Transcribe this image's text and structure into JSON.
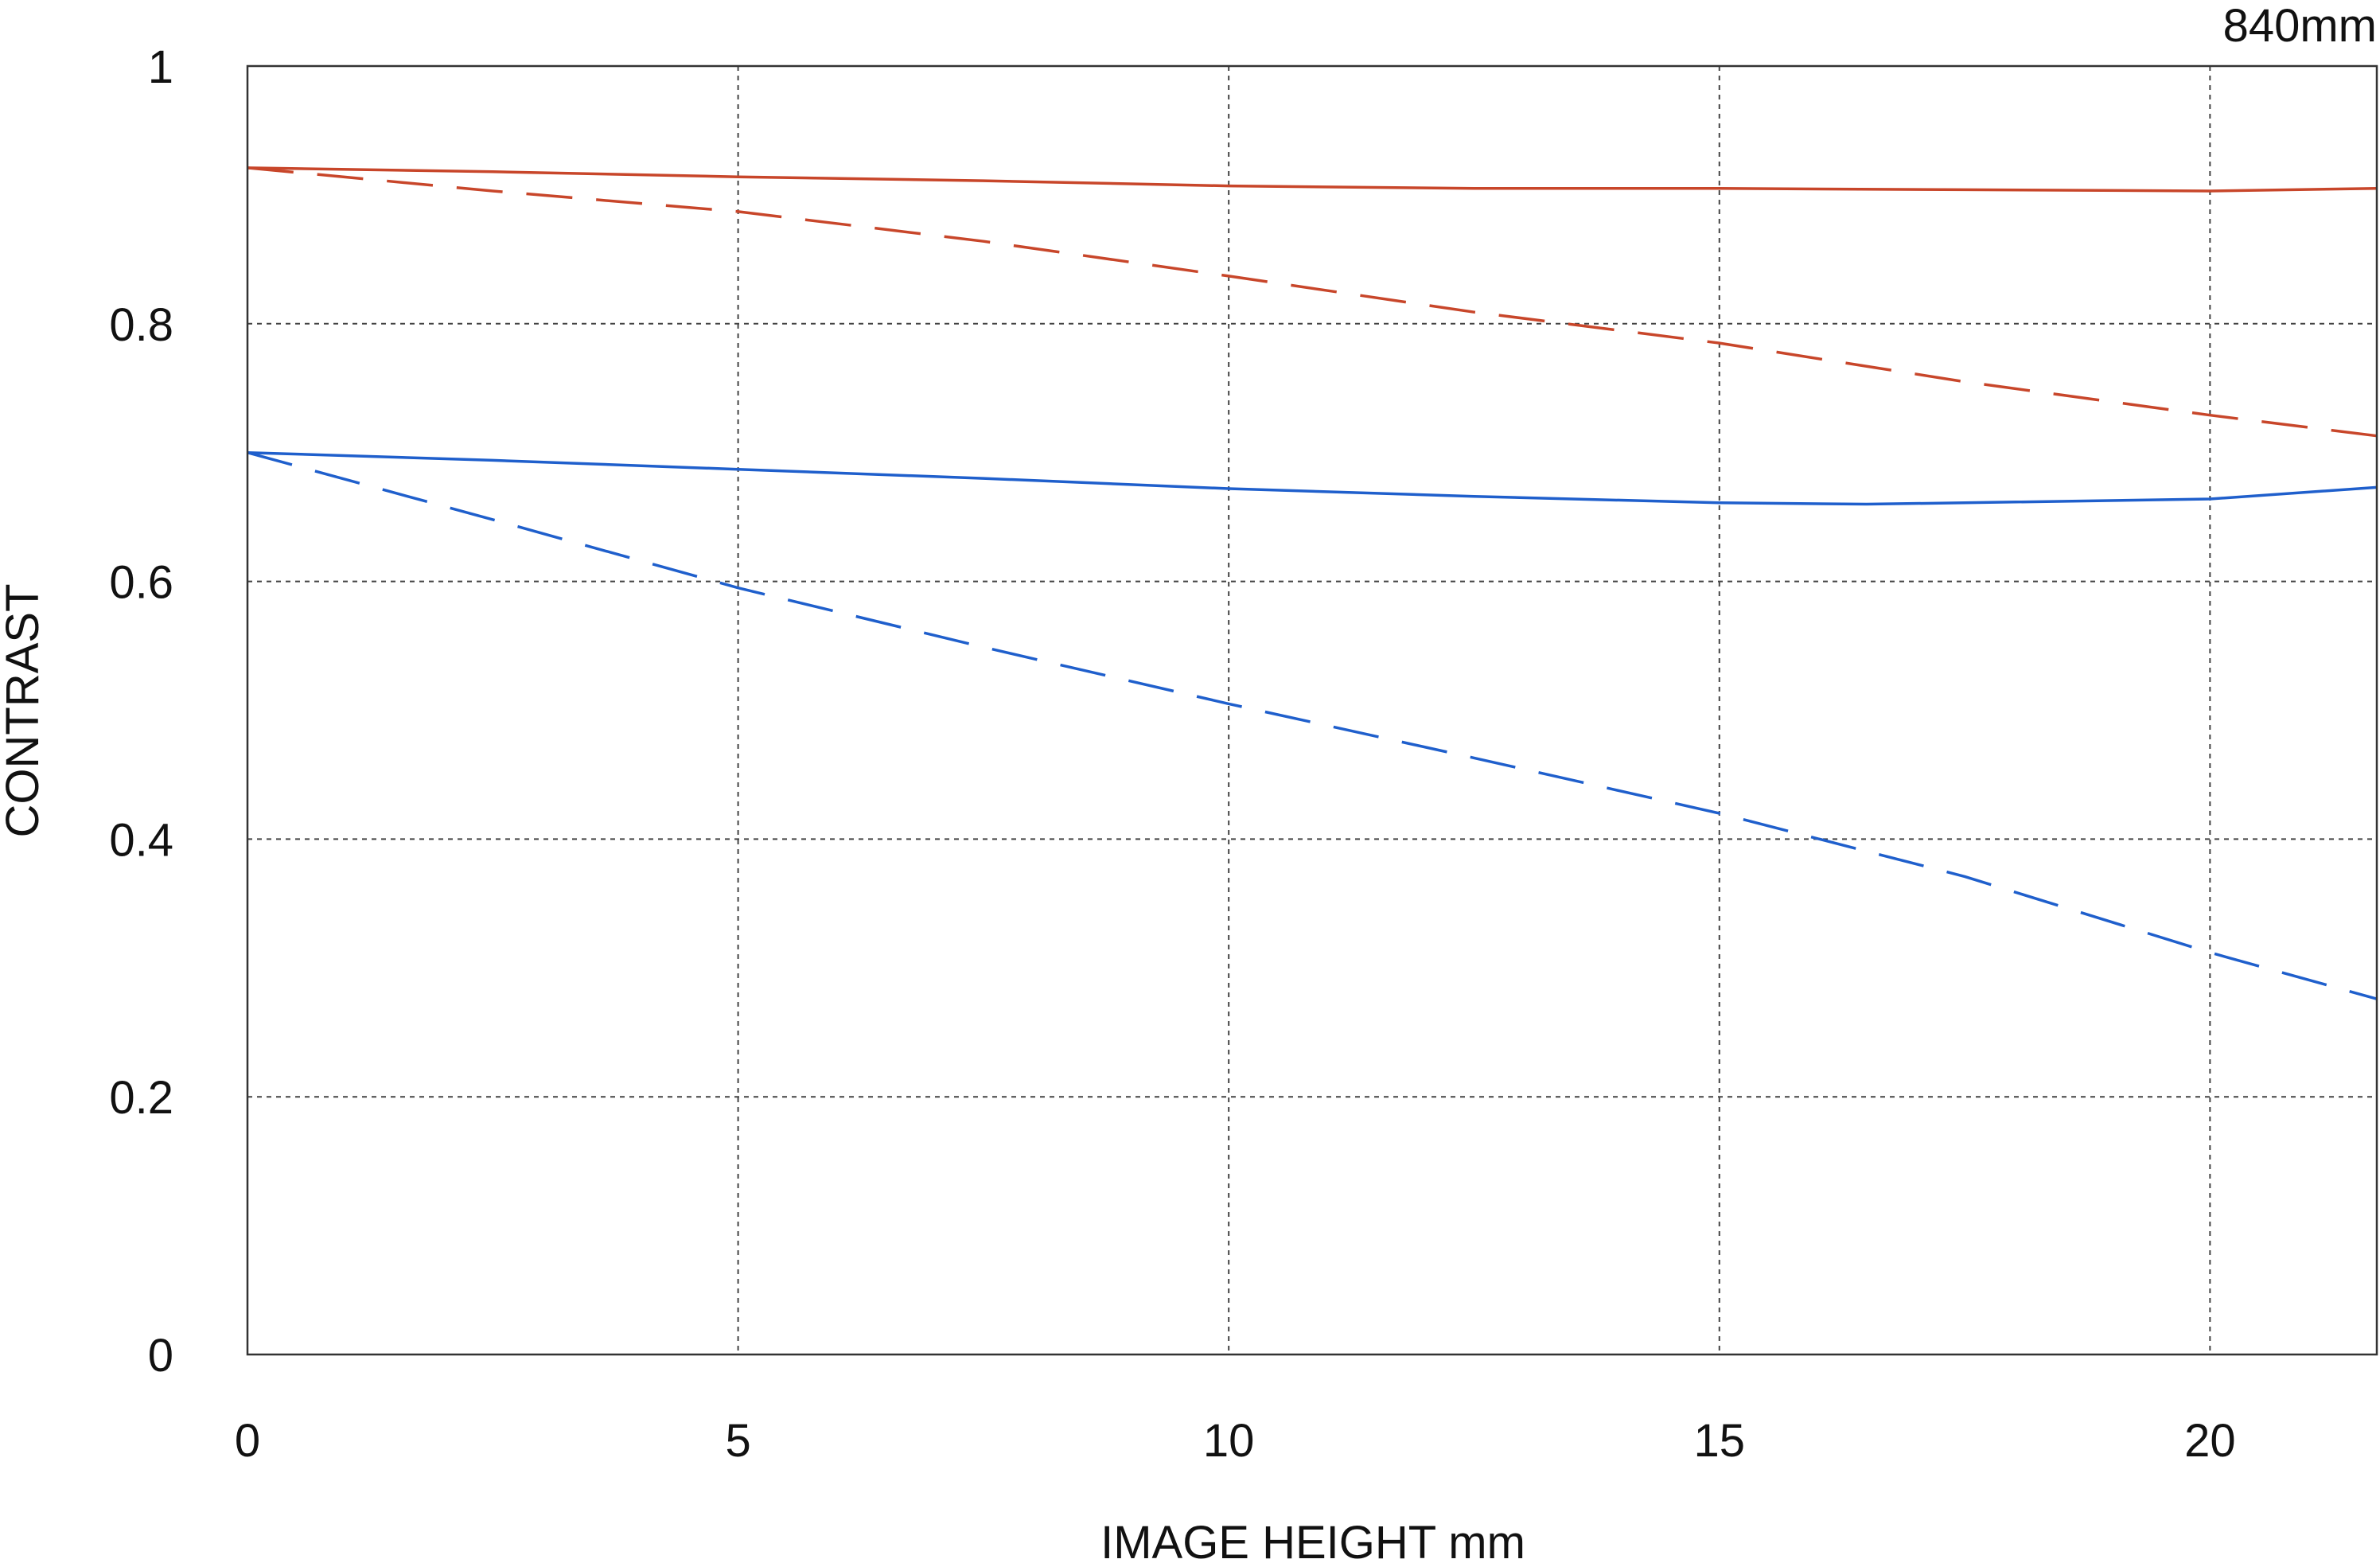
{
  "chart_data": {
    "type": "line",
    "corner_label": "840mm",
    "xlabel": "IMAGE HEIGHT  mm",
    "ylabel": "CONTRAST",
    "xlim": [
      0,
      21.7
    ],
    "ylim": [
      0,
      1
    ],
    "x_ticks": [
      0,
      5,
      10,
      15,
      20
    ],
    "x_tick_labels": [
      "0",
      "5",
      "10",
      "15",
      "20"
    ],
    "y_ticks": [
      0,
      0.2,
      0.4,
      0.6,
      0.8,
      1
    ],
    "y_tick_labels": [
      "0",
      "0.2",
      "0.4",
      "0.6",
      "0.8",
      "1"
    ],
    "grid": true,
    "series": [
      {
        "color": "#c8462a",
        "style": "solid",
        "x": [
          0,
          2.5,
          5,
          7.5,
          10,
          12.5,
          15,
          17.5,
          20,
          21.7
        ],
        "y": [
          0.921,
          0.918,
          0.914,
          0.911,
          0.907,
          0.905,
          0.905,
          0.904,
          0.903,
          0.905
        ]
      },
      {
        "color": "#c8462a",
        "style": "dashed",
        "x": [
          0,
          2.5,
          5,
          7.5,
          10,
          12.5,
          15,
          17.5,
          20,
          21.7
        ],
        "y": [
          0.921,
          0.903,
          0.887,
          0.864,
          0.837,
          0.809,
          0.785,
          0.755,
          0.729,
          0.713
        ]
      },
      {
        "color": "#1f5fcc",
        "style": "solid",
        "x": [
          0,
          2.5,
          5,
          7.5,
          10,
          12.5,
          15,
          16.5,
          17.5,
          20,
          21.7
        ],
        "y": [
          0.7,
          0.694,
          0.687,
          0.68,
          0.672,
          0.666,
          0.661,
          0.66,
          0.661,
          0.664,
          0.673
        ]
      },
      {
        "color": "#1f5fcc",
        "style": "dashed",
        "x": [
          0,
          2.5,
          5,
          7.5,
          10,
          12.5,
          15,
          17.5,
          20,
          21.7
        ],
        "y": [
          0.7,
          0.648,
          0.595,
          0.549,
          0.505,
          0.463,
          0.42,
          0.371,
          0.312,
          0.276
        ]
      }
    ]
  }
}
